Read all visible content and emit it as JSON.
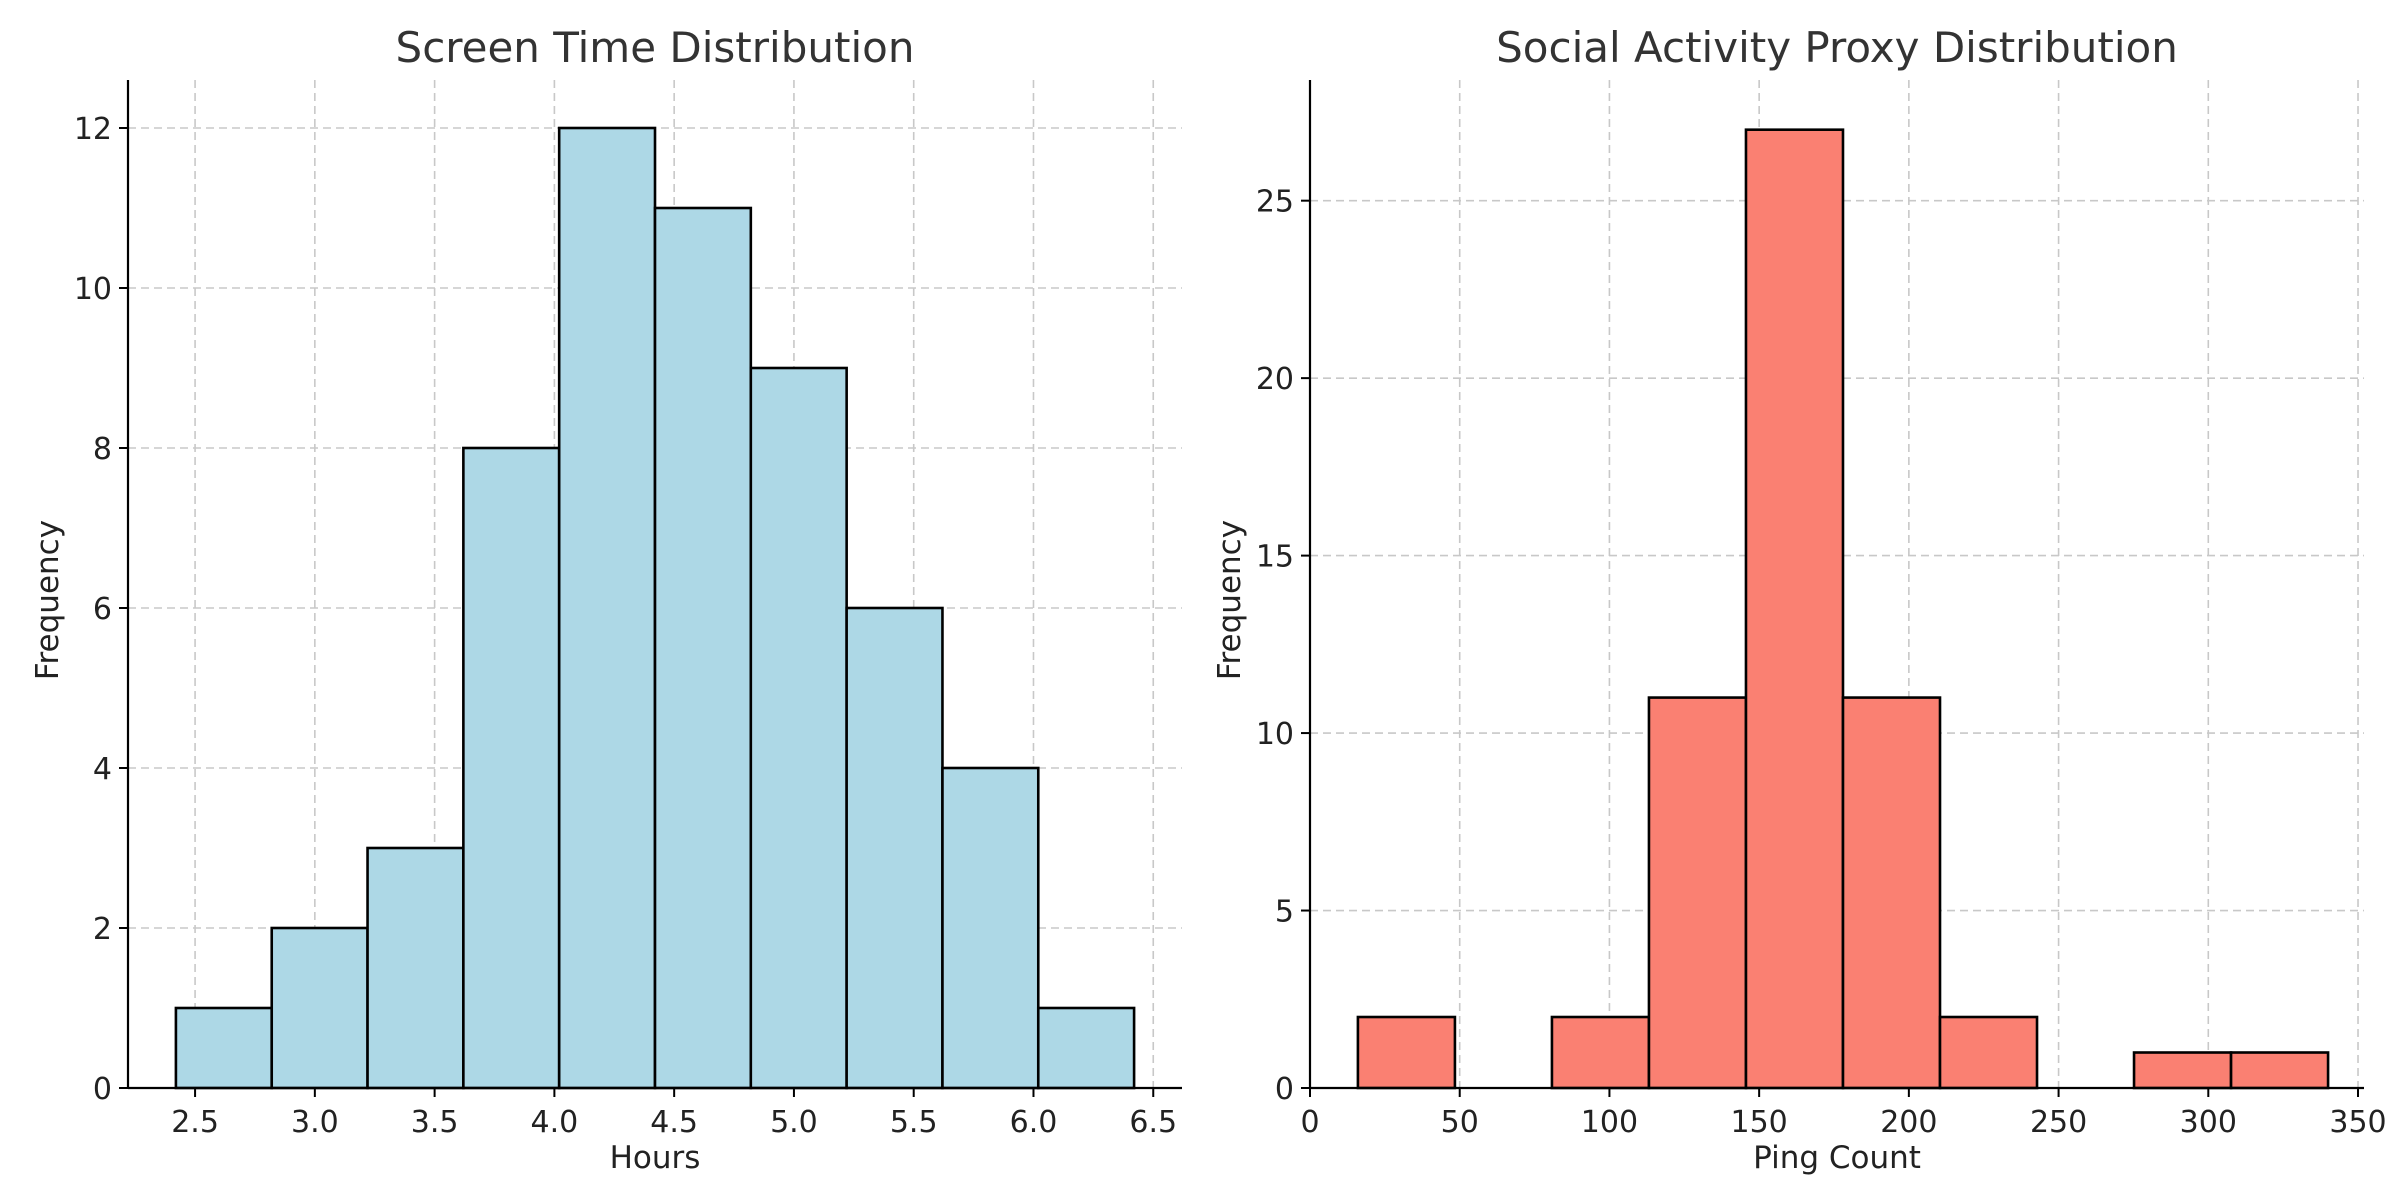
{
  "chart_data": [
    {
      "type": "bar",
      "title": "Screen Time Distribution",
      "xlabel": "Hours",
      "ylabel": "Frequency",
      "bin_edges": [
        2.42,
        2.82,
        3.22,
        3.62,
        4.02,
        4.42,
        4.82,
        5.22,
        5.62,
        6.02,
        6.42
      ],
      "values": [
        1,
        2,
        3,
        8,
        12,
        11,
        9,
        6,
        4,
        1
      ],
      "xlim": [
        2.22,
        6.62
      ],
      "ylim": [
        0,
        12.6
      ],
      "xticks": [
        2.5,
        3.0,
        3.5,
        4.0,
        4.5,
        5.0,
        5.5,
        6.0,
        6.5
      ],
      "xtick_labels": [
        "2.5",
        "3.0",
        "3.5",
        "4.0",
        "4.5",
        "5.0",
        "5.5",
        "6.0",
        "6.5"
      ],
      "yticks": [
        0,
        2,
        4,
        6,
        8,
        10,
        12
      ],
      "ytick_labels": [
        "0",
        "2",
        "4",
        "6",
        "8",
        "10",
        "12"
      ],
      "color": "#add8e6",
      "grid": true
    },
    {
      "type": "bar",
      "title": "Social Activity Proxy Distribution",
      "xlabel": "Ping Count",
      "ylabel": "Frequency",
      "bin_edges": [
        16,
        48.4,
        80.8,
        113.2,
        145.6,
        178,
        210.4,
        242.8,
        275.2,
        307.6,
        340
      ],
      "values": [
        2,
        0,
        2,
        11,
        27,
        11,
        2,
        0,
        1,
        1
      ],
      "xlim": [
        0,
        352
      ],
      "ylim": [
        0,
        28.4
      ],
      "xticks": [
        0,
        50,
        100,
        150,
        200,
        250,
        300,
        350
      ],
      "xtick_labels": [
        "0",
        "50",
        "100",
        "150",
        "200",
        "250",
        "300",
        "350"
      ],
      "yticks": [
        0,
        5,
        10,
        15,
        20,
        25
      ],
      "ytick_labels": [
        "0",
        "5",
        "10",
        "15",
        "20",
        "25"
      ],
      "color": "#fa8072",
      "grid": true
    }
  ]
}
